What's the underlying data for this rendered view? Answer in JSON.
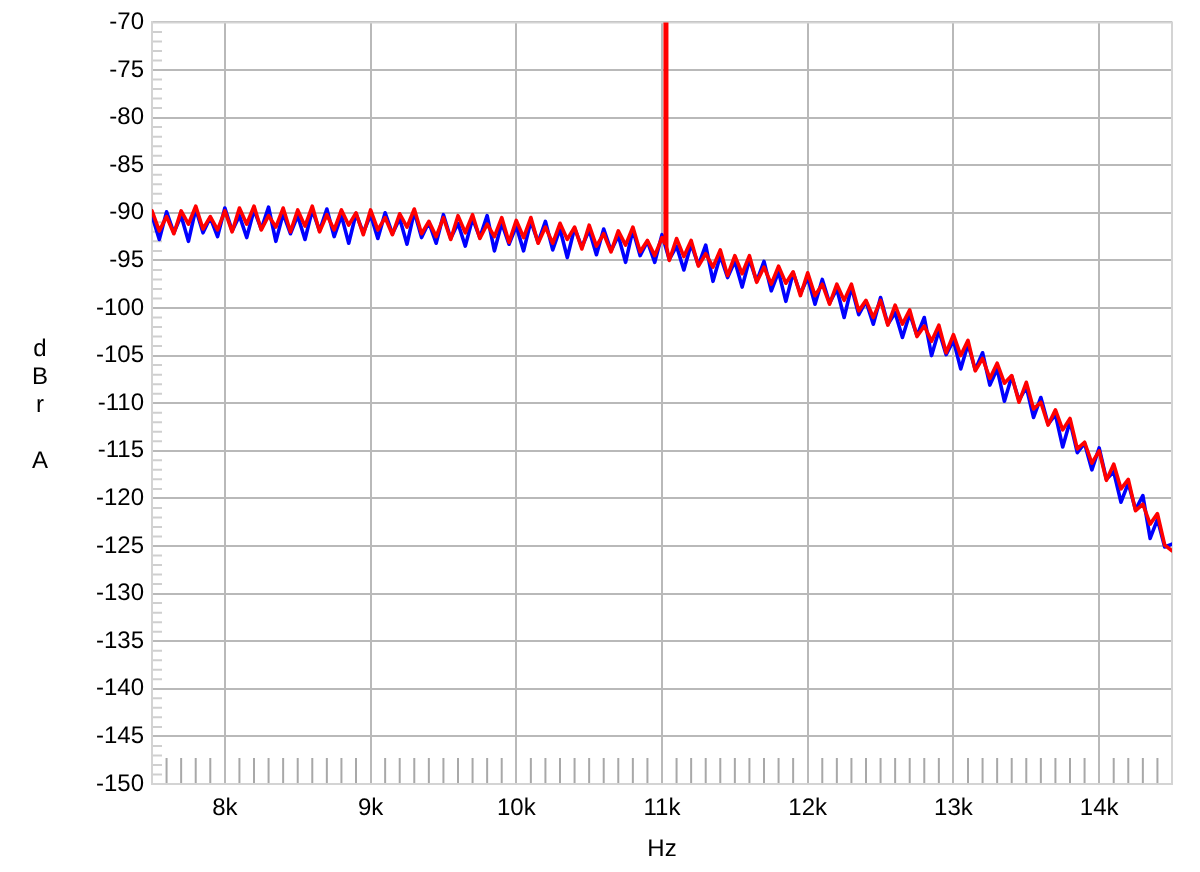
{
  "chart_data": {
    "type": "line",
    "xlabel": "Hz",
    "ylabel": "dBr A",
    "xlim": [
      7500,
      14500
    ],
    "ylim": [
      -150,
      -70
    ],
    "xticks": [
      {
        "value": 7600,
        "label": null
      },
      {
        "value": 7700,
        "label": null
      },
      {
        "value": 7800,
        "label": null
      },
      {
        "value": 7900,
        "label": null
      },
      {
        "value": 8000,
        "label": "8k"
      },
      {
        "value": 8100,
        "label": null
      },
      {
        "value": 8200,
        "label": null
      },
      {
        "value": 8300,
        "label": null
      },
      {
        "value": 8400,
        "label": null
      },
      {
        "value": 8500,
        "label": null
      },
      {
        "value": 8600,
        "label": null
      },
      {
        "value": 8700,
        "label": null
      },
      {
        "value": 8800,
        "label": null
      },
      {
        "value": 8900,
        "label": null
      },
      {
        "value": 9000,
        "label": "9k"
      },
      {
        "value": 9100,
        "label": null
      },
      {
        "value": 9200,
        "label": null
      },
      {
        "value": 9300,
        "label": null
      },
      {
        "value": 9400,
        "label": null
      },
      {
        "value": 9500,
        "label": null
      },
      {
        "value": 9600,
        "label": null
      },
      {
        "value": 9700,
        "label": null
      },
      {
        "value": 9800,
        "label": null
      },
      {
        "value": 9900,
        "label": null
      },
      {
        "value": 10000,
        "label": "10k"
      },
      {
        "value": 10100,
        "label": null
      },
      {
        "value": 10200,
        "label": null
      },
      {
        "value": 10300,
        "label": null
      },
      {
        "value": 10400,
        "label": null
      },
      {
        "value": 10500,
        "label": null
      },
      {
        "value": 10600,
        "label": null
      },
      {
        "value": 10700,
        "label": null
      },
      {
        "value": 10800,
        "label": null
      },
      {
        "value": 10900,
        "label": null
      },
      {
        "value": 11000,
        "label": "11k"
      },
      {
        "value": 11100,
        "label": null
      },
      {
        "value": 11200,
        "label": null
      },
      {
        "value": 11300,
        "label": null
      },
      {
        "value": 11400,
        "label": null
      },
      {
        "value": 11500,
        "label": null
      },
      {
        "value": 11600,
        "label": null
      },
      {
        "value": 11700,
        "label": null
      },
      {
        "value": 11800,
        "label": null
      },
      {
        "value": 11900,
        "label": null
      },
      {
        "value": 12000,
        "label": "12k"
      },
      {
        "value": 12100,
        "label": null
      },
      {
        "value": 12200,
        "label": null
      },
      {
        "value": 12300,
        "label": null
      },
      {
        "value": 12400,
        "label": null
      },
      {
        "value": 12500,
        "label": null
      },
      {
        "value": 12600,
        "label": null
      },
      {
        "value": 12700,
        "label": null
      },
      {
        "value": 12800,
        "label": null
      },
      {
        "value": 12900,
        "label": null
      },
      {
        "value": 13000,
        "label": "13k"
      },
      {
        "value": 13100,
        "label": null
      },
      {
        "value": 13200,
        "label": null
      },
      {
        "value": 13300,
        "label": null
      },
      {
        "value": 13400,
        "label": null
      },
      {
        "value": 13500,
        "label": null
      },
      {
        "value": 13600,
        "label": null
      },
      {
        "value": 13700,
        "label": null
      },
      {
        "value": 13800,
        "label": null
      },
      {
        "value": 13900,
        "label": null
      },
      {
        "value": 14000,
        "label": "14k"
      },
      {
        "value": 14100,
        "label": null
      },
      {
        "value": 14200,
        "label": null
      },
      {
        "value": 14300,
        "label": null
      },
      {
        "value": 14400,
        "label": null
      }
    ],
    "yticks": [
      -150,
      {
        "value": -149,
        "label": null
      },
      {
        "value": -148,
        "label": null
      },
      {
        "value": -147,
        "label": null
      },
      {
        "value": -146,
        "label": null
      },
      -145,
      {
        "value": -144,
        "label": null
      },
      {
        "value": -143,
        "label": null
      },
      {
        "value": -142,
        "label": null
      },
      {
        "value": -141,
        "label": null
      },
      -140,
      {
        "value": -139,
        "label": null
      },
      {
        "value": -138,
        "label": null
      },
      {
        "value": -137,
        "label": null
      },
      {
        "value": -136,
        "label": null
      },
      -135,
      {
        "value": -134,
        "label": null
      },
      {
        "value": -133,
        "label": null
      },
      {
        "value": -132,
        "label": null
      },
      {
        "value": -131,
        "label": null
      },
      -130,
      {
        "value": -129,
        "label": null
      },
      {
        "value": -128,
        "label": null
      },
      {
        "value": -127,
        "label": null
      },
      {
        "value": -126,
        "label": null
      },
      -125,
      {
        "value": -124,
        "label": null
      },
      {
        "value": -123,
        "label": null
      },
      {
        "value": -122,
        "label": null
      },
      {
        "value": -121,
        "label": null
      },
      -120,
      {
        "value": -119,
        "label": null
      },
      {
        "value": -118,
        "label": null
      },
      {
        "value": -117,
        "label": null
      },
      {
        "value": -116,
        "label": null
      },
      -115,
      {
        "value": -114,
        "label": null
      },
      {
        "value": -113,
        "label": null
      },
      {
        "value": -112,
        "label": null
      },
      {
        "value": -111,
        "label": null
      },
      -110,
      {
        "value": -109,
        "label": null
      },
      {
        "value": -108,
        "label": null
      },
      {
        "value": -107,
        "label": null
      },
      {
        "value": -106,
        "label": null
      },
      -105,
      {
        "value": -104,
        "label": null
      },
      {
        "value": -103,
        "label": null
      },
      {
        "value": -102,
        "label": null
      },
      {
        "value": -101,
        "label": null
      },
      -100,
      {
        "value": -99,
        "label": null
      },
      {
        "value": -98,
        "label": null
      },
      {
        "value": -97,
        "label": null
      },
      {
        "value": -96,
        "label": null
      },
      -95,
      {
        "value": -94,
        "label": null
      },
      {
        "value": -93,
        "label": null
      },
      {
        "value": -92,
        "label": null
      },
      {
        "value": -91,
        "label": null
      },
      -90,
      {
        "value": -89,
        "label": null
      },
      {
        "value": -88,
        "label": null
      },
      {
        "value": -87,
        "label": null
      },
      {
        "value": -86,
        "label": null
      },
      -85,
      {
        "value": -84,
        "label": null
      },
      {
        "value": -83,
        "label": null
      },
      {
        "value": -82,
        "label": null
      },
      {
        "value": -81,
        "label": null
      },
      -80,
      {
        "value": -79,
        "label": null
      },
      {
        "value": -78,
        "label": null
      },
      {
        "value": -77,
        "label": null
      },
      {
        "value": -76,
        "label": null
      },
      -75,
      {
        "value": -74,
        "label": null
      },
      {
        "value": -73,
        "label": null
      },
      {
        "value": -72,
        "label": null
      },
      {
        "value": -71,
        "label": null
      },
      -70
    ],
    "grid": true,
    "marker": "none",
    "line_style": "solid",
    "x": [
      7500,
      7550,
      7600,
      7650,
      7700,
      7750,
      7800,
      7850,
      7900,
      7950,
      8000,
      8050,
      8100,
      8150,
      8200,
      8250,
      8300,
      8350,
      8400,
      8450,
      8500,
      8550,
      8600,
      8650,
      8700,
      8750,
      8800,
      8850,
      8900,
      8950,
      9000,
      9050,
      9100,
      9150,
      9200,
      9250,
      9300,
      9350,
      9400,
      9450,
      9500,
      9550,
      9600,
      9650,
      9700,
      9750,
      9800,
      9850,
      9900,
      9950,
      10000,
      10050,
      10100,
      10150,
      10200,
      10250,
      10300,
      10350,
      10400,
      10450,
      10500,
      10550,
      10600,
      10650,
      10700,
      10750,
      10800,
      10850,
      10900,
      10950,
      11000,
      11050,
      11100,
      11150,
      11200,
      11250,
      11300,
      11350,
      11400,
      11450,
      11500,
      11550,
      11600,
      11650,
      11700,
      11750,
      11800,
      11850,
      11900,
      11950,
      12000,
      12050,
      12100,
      12150,
      12200,
      12250,
      12300,
      12350,
      12400,
      12450,
      12500,
      12550,
      12600,
      12650,
      12700,
      12750,
      12800,
      12850,
      12900,
      12950,
      13000,
      13050,
      13100,
      13150,
      13200,
      13250,
      13300,
      13350,
      13400,
      13450,
      13500,
      13550,
      13600,
      13650,
      13700,
      13750,
      13800,
      13850,
      13900,
      13950,
      14000,
      14050,
      14100,
      14150,
      14200,
      14250,
      14300,
      14350,
      14400,
      14450,
      14500
    ],
    "series": [
      {
        "color": "#0000ff",
        "values": [
          -90.3,
          -92.8,
          -89.9,
          -92.1,
          -90.3,
          -93.0,
          -89.6,
          -92.1,
          -90.5,
          -92.5,
          -89.5,
          -91.9,
          -90.3,
          -92.6,
          -89.7,
          -91.7,
          -89.4,
          -93.0,
          -90.1,
          -92.2,
          -90.3,
          -92.8,
          -89.7,
          -91.9,
          -89.6,
          -92.5,
          -90.3,
          -93.2,
          -90.1,
          -92.1,
          -90.2,
          -92.7,
          -90.0,
          -92.2,
          -90.6,
          -93.3,
          -89.9,
          -92.6,
          -91.0,
          -93.2,
          -90.2,
          -92.7,
          -91.1,
          -93.5,
          -90.6,
          -92.6,
          -90.3,
          -94.0,
          -91.1,
          -93.3,
          -91.4,
          -94.0,
          -90.9,
          -93.1,
          -90.9,
          -93.9,
          -91.7,
          -94.7,
          -91.6,
          -93.6,
          -91.8,
          -94.4,
          -91.7,
          -94.0,
          -92.4,
          -95.2,
          -91.8,
          -94.5,
          -93.0,
          -95.2,
          -92.3,
          -94.9,
          -93.5,
          -96.0,
          -93.3,
          -95.5,
          -93.4,
          -97.2,
          -94.5,
          -96.8,
          -95.1,
          -97.8,
          -94.9,
          -97.2,
          -95.1,
          -98.2,
          -96.2,
          -99.3,
          -96.3,
          -98.5,
          -96.8,
          -99.6,
          -97.0,
          -99.5,
          -98.0,
          -101.0,
          -97.8,
          -100.7,
          -99.3,
          -101.7,
          -98.9,
          -101.7,
          -100.5,
          -103.1,
          -100.6,
          -102.9,
          -101.0,
          -105.0,
          -102.4,
          -104.9,
          -103.4,
          -106.4,
          -103.8,
          -106.5,
          -104.7,
          -108.1,
          -106.4,
          -109.8,
          -107.2,
          -109.7,
          -108.3,
          -111.5,
          -109.4,
          -112.2,
          -111.2,
          -114.6,
          -111.9,
          -115.2,
          -114.2,
          -117.0,
          -114.7,
          -118.0,
          -117.2,
          -120.4,
          -118.4,
          -121.2,
          -119.7,
          -124.2,
          -122.2,
          -125.1,
          -124.8
        ]
      },
      {
        "color": "#ff0000",
        "x": [
          7500,
          7550,
          7600,
          7650,
          7700,
          7750,
          7800,
          7850,
          7900,
          7950,
          8000,
          8050,
          8100,
          8150,
          8200,
          8250,
          8300,
          8350,
          8400,
          8450,
          8500,
          8550,
          8600,
          8650,
          8700,
          8750,
          8800,
          8850,
          8900,
          8950,
          9000,
          9050,
          9100,
          9150,
          9200,
          9250,
          9300,
          9350,
          9400,
          9450,
          9500,
          9550,
          9600,
          9650,
          9700,
          9750,
          9800,
          9850,
          9900,
          9950,
          10000,
          10050,
          10100,
          10150,
          10200,
          10250,
          10300,
          10350,
          10400,
          10450,
          10500,
          10550,
          10600,
          10650,
          10700,
          10750,
          10800,
          10850,
          10900,
          10950,
          11000,
          11018,
          11022,
          11028,
          11032,
          11050,
          11100,
          11150,
          11200,
          11250,
          11300,
          11350,
          11400,
          11450,
          11500,
          11550,
          11600,
          11650,
          11700,
          11750,
          11800,
          11850,
          11900,
          11950,
          12000,
          12050,
          12100,
          12150,
          12200,
          12250,
          12300,
          12350,
          12400,
          12450,
          12500,
          12550,
          12600,
          12650,
          12700,
          12750,
          12800,
          12850,
          12900,
          12950,
          13000,
          13050,
          13100,
          13150,
          13200,
          13250,
          13300,
          13350,
          13400,
          13450,
          13500,
          13550,
          13600,
          13650,
          13700,
          13750,
          13800,
          13850,
          13900,
          13950,
          14000,
          14050,
          14100,
          14150,
          14200,
          14250,
          14300,
          14350,
          14400,
          14450,
          14500
        ],
        "values": [
          -89.8,
          -91.9,
          -90.4,
          -92.2,
          -89.8,
          -91.2,
          -89.3,
          -91.7,
          -90.4,
          -91.8,
          -89.8,
          -92.0,
          -89.5,
          -91.2,
          -89.3,
          -91.8,
          -90.3,
          -91.5,
          -89.5,
          -92.0,
          -89.7,
          -91.4,
          -89.3,
          -92.0,
          -90.2,
          -91.8,
          -89.7,
          -91.3,
          -90.0,
          -92.3,
          -89.7,
          -91.8,
          -90.5,
          -92.3,
          -90.1,
          -91.5,
          -89.6,
          -92.2,
          -90.9,
          -92.5,
          -90.5,
          -92.8,
          -90.3,
          -92.1,
          -90.2,
          -92.7,
          -91.2,
          -92.5,
          -90.5,
          -93.1,
          -90.8,
          -92.6,
          -90.5,
          -93.2,
          -91.5,
          -93.2,
          -91.1,
          -92.8,
          -91.5,
          -93.8,
          -91.3,
          -93.5,
          -92.2,
          -94.1,
          -91.9,
          -93.4,
          -91.5,
          -94.1,
          -92.9,
          -94.5,
          -92.6,
          -93.2,
          -70,
          -70,
          -93.6,
          -95.0,
          -92.7,
          -94.6,
          -92.9,
          -95.6,
          -94.3,
          -95.7,
          -93.9,
          -96.6,
          -94.5,
          -96.4,
          -94.5,
          -97.3,
          -95.7,
          -97.5,
          -95.6,
          -97.4,
          -96.2,
          -98.7,
          -96.3,
          -98.7,
          -97.5,
          -99.6,
          -97.5,
          -99.2,
          -97.5,
          -100.3,
          -99.2,
          -101.0,
          -99.2,
          -101.8,
          -99.7,
          -101.7,
          -100.2,
          -103.0,
          -101.9,
          -103.5,
          -101.8,
          -104.7,
          -102.8,
          -105.0,
          -103.4,
          -106.6,
          -105.3,
          -107.4,
          -105.8,
          -107.9,
          -107.1,
          -109.9,
          -107.8,
          -110.6,
          -109.9,
          -112.3,
          -110.7,
          -112.8,
          -111.6,
          -114.8,
          -114.1,
          -116.3,
          -115.0,
          -118.1,
          -116.4,
          -119.0,
          -118.0,
          -121.3,
          -120.6,
          -122.7,
          -121.6,
          -124.9,
          -125.5
        ]
      }
    ]
  }
}
